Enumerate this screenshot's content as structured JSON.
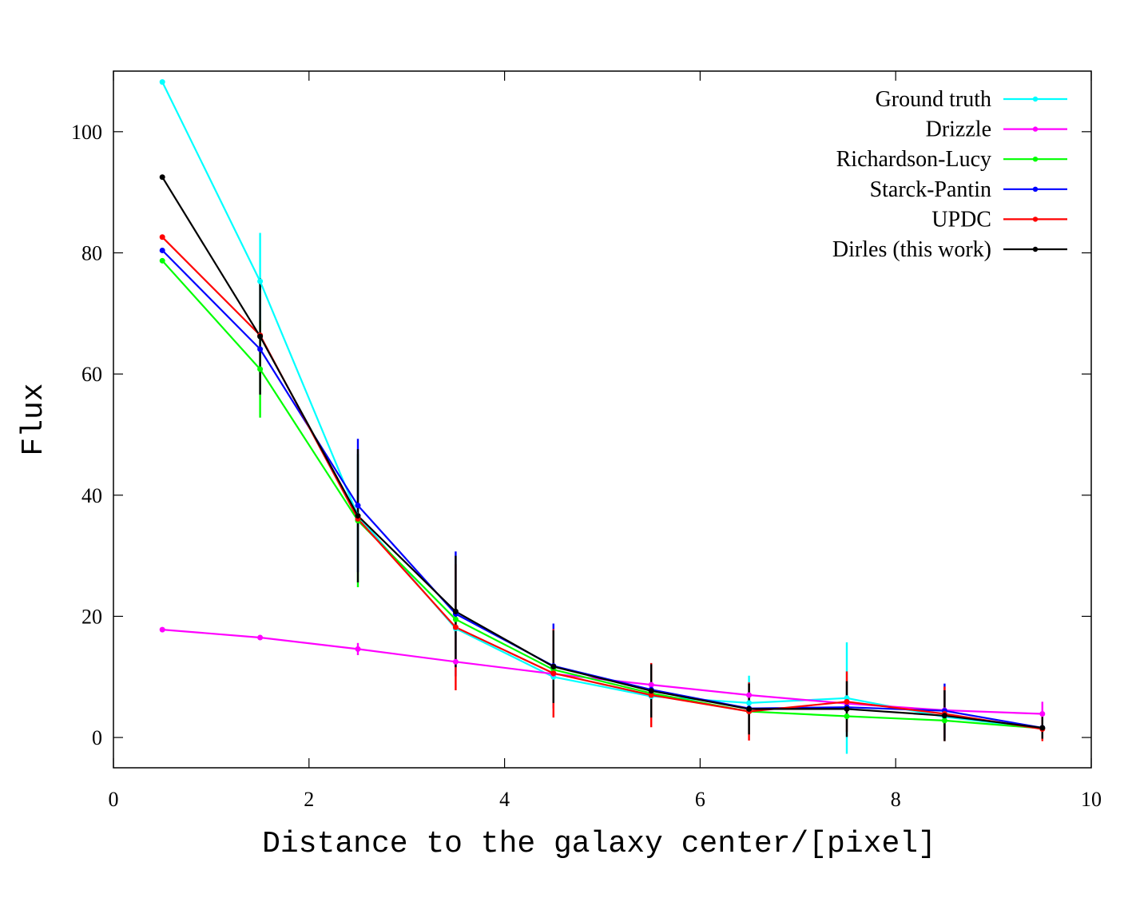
{
  "chart_data": {
    "type": "line",
    "xlabel": "Distance to the galaxy center/[pixel]",
    "ylabel": "Flux",
    "xlim": [
      0,
      10
    ],
    "ylim": [
      -5,
      110
    ],
    "xticks": [
      0,
      2,
      4,
      6,
      8,
      10
    ],
    "yticks": [
      0,
      20,
      40,
      60,
      80,
      100
    ],
    "grid": false,
    "legend_position": "top-right",
    "x": [
      0.5,
      1.5,
      2.5,
      3.5,
      4.5,
      5.5,
      6.5,
      7.5,
      8.5,
      9.5
    ],
    "series": [
      {
        "name": "Ground truth",
        "color": "#00ffff",
        "values": [
          108.2,
          75.3,
          36.6,
          18.0,
          10.0,
          6.8,
          5.7,
          6.5,
          3.4,
          1.5
        ],
        "errors": [
          0,
          8,
          0,
          0,
          0,
          0,
          4.5,
          9.2,
          0,
          0
        ]
      },
      {
        "name": "Drizzle",
        "color": "#ff00ff",
        "values": [
          17.8,
          16.5,
          14.6,
          12.5,
          10.5,
          8.7,
          7.0,
          5.6,
          4.5,
          3.9
        ],
        "errors": [
          0,
          0,
          1,
          0,
          0,
          0,
          0,
          0,
          0,
          2
        ]
      },
      {
        "name": "Richardson-Lucy",
        "color": "#00ff00",
        "values": [
          78.7,
          60.8,
          35.8,
          19.5,
          11.2,
          7.3,
          4.3,
          3.5,
          2.8,
          1.5
        ],
        "errors": [
          0,
          8,
          11,
          0,
          0,
          0,
          0,
          0,
          0,
          0
        ]
      },
      {
        "name": "Starck-Pantin",
        "color": "#0000ff",
        "values": [
          80.4,
          64.1,
          38.3,
          20.4,
          11.8,
          7.9,
          4.8,
          5.0,
          4.4,
          1.6
        ],
        "errors": [
          0,
          0,
          11,
          10.3,
          7,
          0,
          0,
          0,
          4.5,
          0
        ]
      },
      {
        "name": "UPDC",
        "color": "#ff0000",
        "values": [
          82.6,
          66.4,
          36.1,
          18.2,
          10.6,
          7.0,
          4.3,
          5.9,
          3.9,
          1.4
        ],
        "errors": [
          0,
          0,
          0,
          10.4,
          7.3,
          5.3,
          4.8,
          5.0,
          4.5,
          2
        ]
      },
      {
        "name": "Dirles (this work)",
        "color": "#000000",
        "values": [
          92.5,
          66.2,
          36.6,
          20.8,
          11.7,
          7.7,
          4.7,
          4.7,
          3.6,
          1.6
        ],
        "errors": [
          0,
          9.6,
          11,
          9.2,
          6,
          4.4,
          4.2,
          4.6,
          4.2,
          1.8
        ]
      }
    ]
  }
}
